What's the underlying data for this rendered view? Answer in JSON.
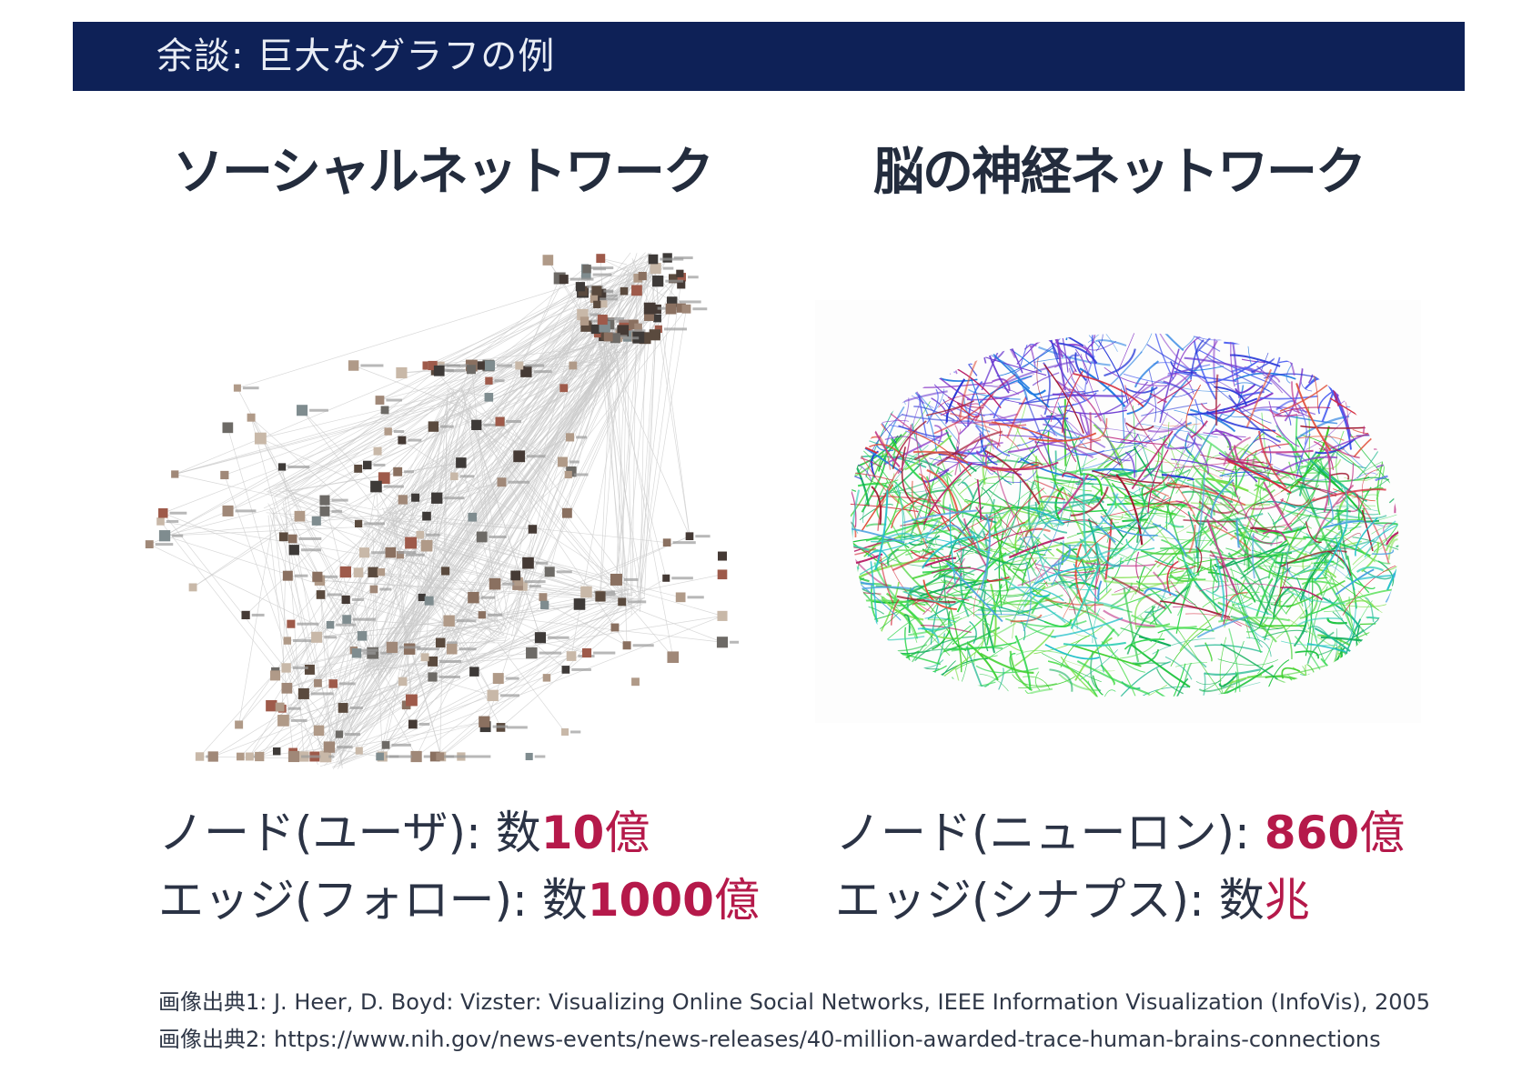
{
  "slide": {
    "title": "余談: 巨大なグラフの例"
  },
  "left": {
    "heading": "ソーシャルネットワーク",
    "nodes": {
      "label": "ノード(ユーザ): ",
      "prefix": "数",
      "value": "10",
      "unit": "億"
    },
    "edges": {
      "label": "エッジ(フォロー): ",
      "prefix": "数",
      "value": "1000",
      "unit": "億"
    }
  },
  "right": {
    "heading": "脳の神経ネットワーク",
    "nodes": {
      "label": "ノード(ニューロン): ",
      "value": "860",
      "unit": "億"
    },
    "edges": {
      "label": "エッジ(シナプス): ",
      "prefix": "数",
      "unit": "兆"
    }
  },
  "credits": [
    "画像出典1: J. Heer, D. Boyd: Vizster: Visualizing Online Social Networks, IEEE Information Visualization (InfoVis), 2005",
    "画像出典2: https://www.nih.gov/news-events/news-releases/40-million-awarded-trace-human-brains-connections"
  ],
  "colors": {
    "title_bar": "#0e2157",
    "highlight": "#b5194a",
    "text": "#263040"
  }
}
